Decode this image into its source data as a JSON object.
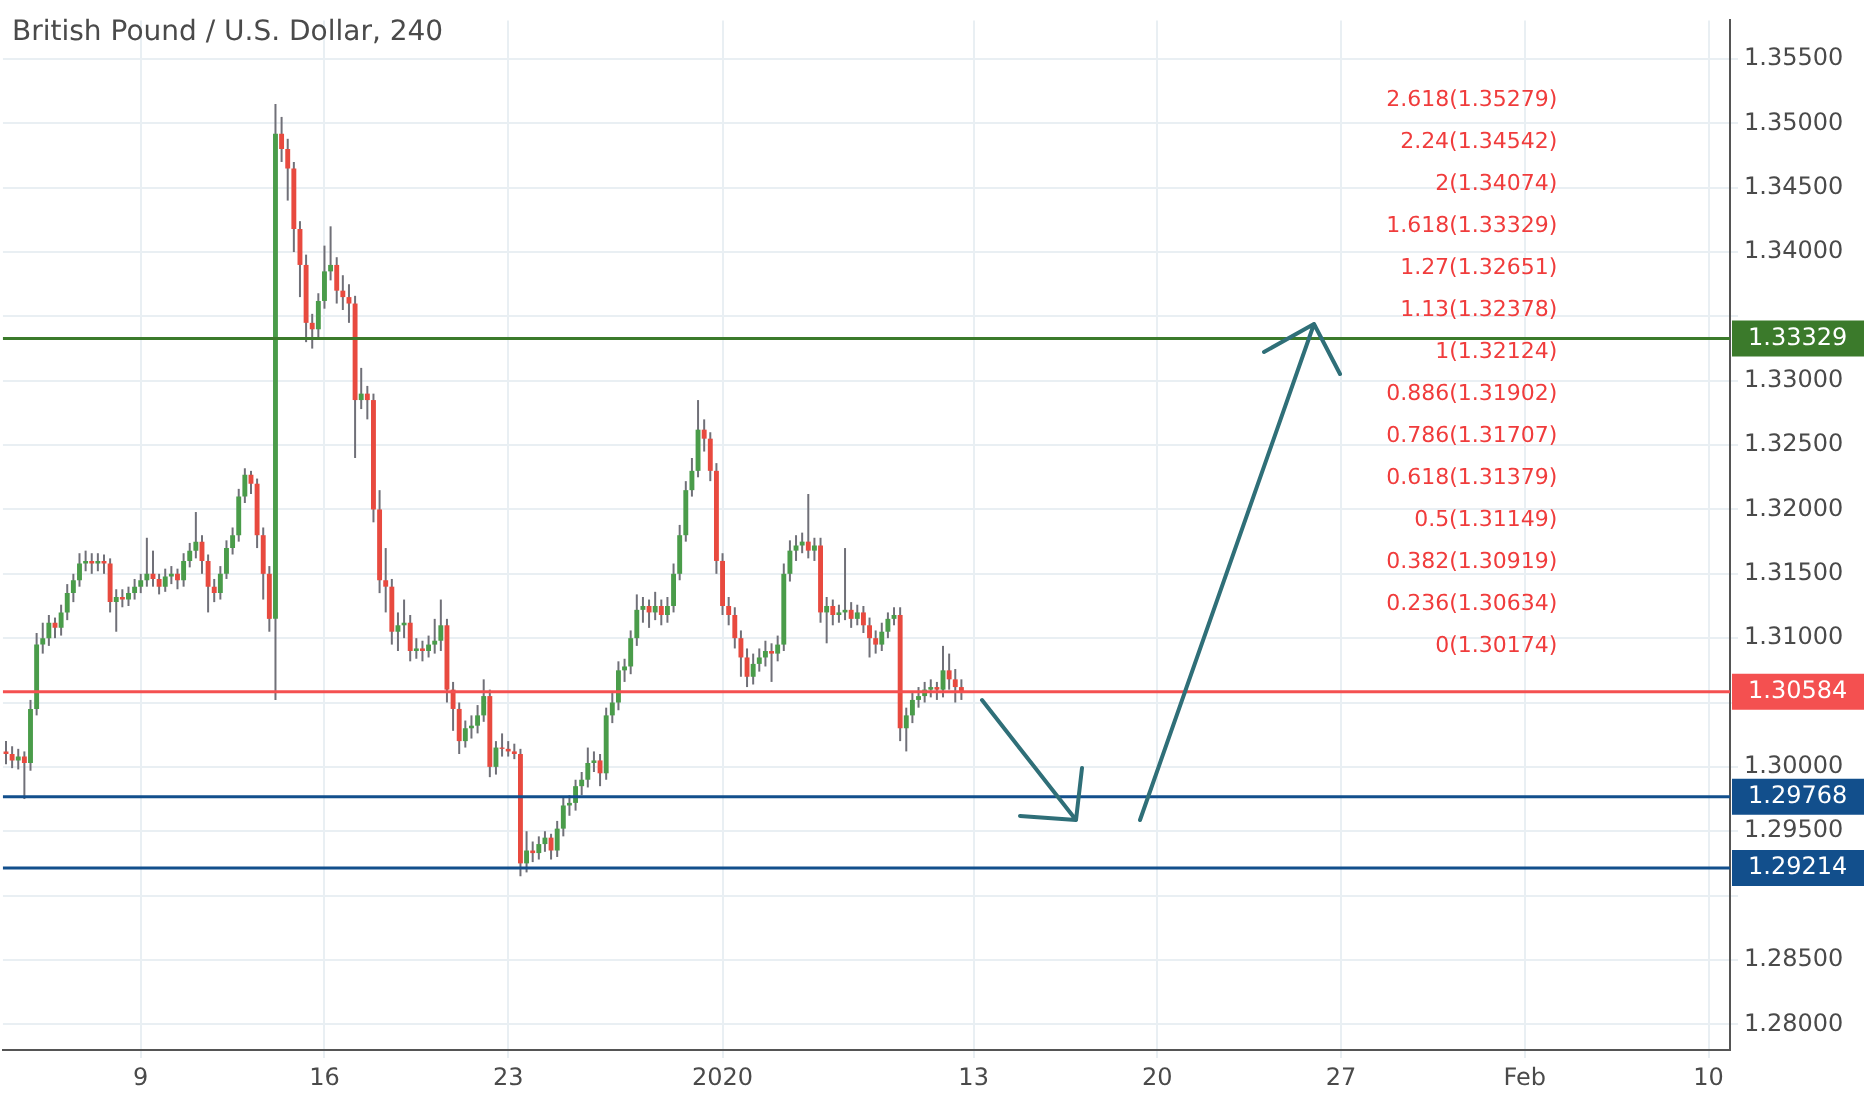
{
  "chart_data": {
    "type": "candlestick",
    "title": "British Pound / U.S. Dollar, 240",
    "categories": [
      null,
      null,
      null,
      null,
      null,
      null,
      null,
      null,
      null,
      null,
      null,
      null,
      null,
      null,
      null,
      null,
      null,
      null,
      null,
      null,
      null,
      null,
      "9",
      null,
      null,
      null,
      null,
      null,
      null,
      null,
      null,
      null,
      null,
      null,
      null,
      null,
      null,
      null,
      null,
      null,
      null,
      null,
      null,
      null,
      null,
      null,
      null,
      null,
      null,
      null,
      null,
      null,
      "16",
      null,
      null,
      null,
      null,
      null,
      null,
      null,
      null,
      null,
      null,
      null,
      null,
      null,
      null,
      null,
      null,
      null,
      null,
      null,
      null,
      null,
      null,
      null,
      null,
      null,
      null,
      null,
      null,
      null,
      "23",
      null,
      null,
      null,
      null,
      null,
      null,
      null,
      null,
      null,
      null,
      null,
      null,
      null,
      null,
      null,
      null,
      null,
      null,
      null,
      null,
      null,
      null,
      null,
      null,
      null,
      null,
      null,
      null,
      null,
      null,
      null,
      null,
      null,
      null,
      "2020",
      null,
      null,
      null,
      null,
      null,
      null,
      null,
      null,
      null,
      null,
      null,
      null,
      null,
      null,
      null,
      null,
      null,
      null,
      null,
      null,
      null,
      null,
      null,
      null,
      null,
      null,
      null,
      null,
      null,
      null,
      null,
      null,
      null,
      null,
      null,
      null,
      null,
      null,
      null,
      null,
      "13",
      null,
      null,
      null,
      null,
      null,
      null,
      null,
      null,
      null,
      null,
      null,
      null,
      null,
      null,
      null,
      null,
      null,
      null,
      null,
      null,
      null,
      null,
      null,
      null,
      null,
      null,
      null,
      null,
      null,
      "20",
      null,
      null,
      null,
      null,
      null,
      null,
      null,
      null,
      null,
      null,
      null,
      null,
      null,
      null,
      null,
      null,
      null,
      null,
      null,
      null,
      null,
      null,
      null,
      null,
      null,
      null,
      null,
      null,
      null,
      "27",
      null,
      null,
      null,
      null,
      null,
      null,
      null,
      null,
      null,
      null,
      null,
      null,
      null,
      null,
      null,
      null,
      null,
      null,
      null,
      null,
      null,
      null,
      null,
      null,
      null,
      null,
      null,
      null,
      null,
      "Feb",
      null,
      null,
      null,
      null,
      null,
      null,
      null,
      null,
      null,
      null,
      null,
      null,
      null,
      null,
      null,
      null,
      null,
      null,
      null,
      null,
      null,
      null,
      null,
      null,
      null,
      null,
      null,
      null,
      null,
      "10",
      null,
      null,
      null
    ],
    "ohlc": [
      [
        1.3012,
        1.302,
        1.3002,
        1.301
      ],
      [
        1.301,
        1.3016,
        1.2999,
        1.3005
      ],
      [
        1.3005,
        1.3014,
        1.2998,
        1.3008
      ],
      [
        1.3008,
        1.3012,
        1.2975,
        1.3003
      ],
      [
        1.3003,
        1.3052,
        1.2997,
        1.3045
      ],
      [
        1.3045,
        1.3104,
        1.304,
        1.3095
      ],
      [
        1.3095,
        1.3112,
        1.3088,
        1.31
      ],
      [
        1.31,
        1.3118,
        1.3094,
        1.3112
      ],
      [
        1.3112,
        1.3116,
        1.31,
        1.3108
      ],
      [
        1.3108,
        1.3126,
        1.3102,
        1.312
      ],
      [
        1.312,
        1.3142,
        1.3114,
        1.3135
      ],
      [
        1.3135,
        1.315,
        1.3128,
        1.3145
      ],
      [
        1.3145,
        1.3166,
        1.314,
        1.3158
      ],
      [
        1.3158,
        1.3168,
        1.3152,
        1.316
      ],
      [
        1.316,
        1.3166,
        1.315,
        1.3158
      ],
      [
        1.3158,
        1.3166,
        1.3152,
        1.316
      ],
      [
        1.316,
        1.3165,
        1.315,
        1.3158
      ],
      [
        1.3158,
        1.3162,
        1.312,
        1.3128
      ],
      [
        1.3128,
        1.3138,
        1.3105,
        1.3132
      ],
      [
        1.3132,
        1.3138,
        1.3124,
        1.313
      ],
      [
        1.313,
        1.314,
        1.3125,
        1.3135
      ],
      [
        1.3135,
        1.3146,
        1.313,
        1.314
      ],
      [
        1.314,
        1.315,
        1.3135,
        1.3145
      ],
      [
        1.3145,
        1.3178,
        1.314,
        1.315
      ],
      [
        1.315,
        1.3168,
        1.314,
        1.3146
      ],
      [
        1.3146,
        1.315,
        1.3134,
        1.314
      ],
      [
        1.314,
        1.3154,
        1.3136,
        1.3148
      ],
      [
        1.3148,
        1.3156,
        1.3142,
        1.315
      ],
      [
        1.315,
        1.3154,
        1.3138,
        1.3145
      ],
      [
        1.3145,
        1.3166,
        1.314,
        1.316
      ],
      [
        1.316,
        1.3174,
        1.3155,
        1.3168
      ],
      [
        1.3168,
        1.3198,
        1.3162,
        1.3175
      ],
      [
        1.3175,
        1.318,
        1.315,
        1.316
      ],
      [
        1.316,
        1.3165,
        1.312,
        1.314
      ],
      [
        1.314,
        1.3146,
        1.3128,
        1.3135
      ],
      [
        1.3135,
        1.3156,
        1.313,
        1.315
      ],
      [
        1.315,
        1.3176,
        1.3146,
        1.317
      ],
      [
        1.317,
        1.3186,
        1.3165,
        1.318
      ],
      [
        1.318,
        1.3216,
        1.3175,
        1.321
      ],
      [
        1.321,
        1.3232,
        1.3205,
        1.3227
      ],
      [
        1.3227,
        1.323,
        1.3212,
        1.322
      ],
      [
        1.322,
        1.3224,
        1.317,
        1.318
      ],
      [
        1.318,
        1.3186,
        1.313,
        1.315
      ],
      [
        1.315,
        1.3156,
        1.3105,
        1.3115
      ],
      [
        1.3115,
        1.3515,
        1.3052,
        1.3492
      ],
      [
        1.3492,
        1.3505,
        1.347,
        1.348
      ],
      [
        1.348,
        1.3488,
        1.344,
        1.3465
      ],
      [
        1.3465,
        1.347,
        1.34,
        1.3418
      ],
      [
        1.3418,
        1.3424,
        1.3365,
        1.339
      ],
      [
        1.339,
        1.3398,
        1.333,
        1.3345
      ],
      [
        1.3345,
        1.3352,
        1.3325,
        1.334
      ],
      [
        1.334,
        1.3368,
        1.3334,
        1.3362
      ],
      [
        1.3362,
        1.3405,
        1.3356,
        1.3385
      ],
      [
        1.3385,
        1.342,
        1.3378,
        1.339
      ],
      [
        1.339,
        1.3396,
        1.336,
        1.337
      ],
      [
        1.337,
        1.3382,
        1.3355,
        1.3365
      ],
      [
        1.3365,
        1.3375,
        1.3345,
        1.336
      ],
      [
        1.336,
        1.3366,
        1.324,
        1.3285
      ],
      [
        1.3285,
        1.331,
        1.3278,
        1.329
      ],
      [
        1.329,
        1.3296,
        1.327,
        1.3285
      ],
      [
        1.3285,
        1.329,
        1.319,
        1.32
      ],
      [
        1.32,
        1.3215,
        1.3135,
        1.3145
      ],
      [
        1.3145,
        1.317,
        1.312,
        1.314
      ],
      [
        1.314,
        1.3146,
        1.3095,
        1.3105
      ],
      [
        1.3105,
        1.312,
        1.309,
        1.311
      ],
      [
        1.311,
        1.313,
        1.31,
        1.3112
      ],
      [
        1.3112,
        1.3118,
        1.3082,
        1.309
      ],
      [
        1.309,
        1.31,
        1.3084,
        1.3092
      ],
      [
        1.3092,
        1.3098,
        1.3082,
        1.309
      ],
      [
        1.309,
        1.3102,
        1.3085,
        1.3095
      ],
      [
        1.3095,
        1.3115,
        1.3088,
        1.3098
      ],
      [
        1.3098,
        1.313,
        1.309,
        1.311
      ],
      [
        1.311,
        1.3115,
        1.305,
        1.306
      ],
      [
        1.306,
        1.3066,
        1.3028,
        1.3045
      ],
      [
        1.3045,
        1.305,
        1.301,
        1.302
      ],
      [
        1.302,
        1.3036,
        1.3015,
        1.303
      ],
      [
        1.303,
        1.304,
        1.3022,
        1.3032
      ],
      [
        1.3032,
        1.3048,
        1.3026,
        1.304
      ],
      [
        1.304,
        1.3068,
        1.3035,
        1.3055
      ],
      [
        1.3055,
        1.306,
        1.2992,
        1.3
      ],
      [
        1.3,
        1.302,
        1.2994,
        1.3015
      ],
      [
        1.3015,
        1.3026,
        1.3008,
        1.3014
      ],
      [
        1.3014,
        1.302,
        1.3008,
        1.3012
      ],
      [
        1.3012,
        1.3018,
        1.3006,
        1.301
      ],
      [
        1.301,
        1.3014,
        1.2915,
        1.2925
      ],
      [
        1.2925,
        1.295,
        1.2918,
        1.2935
      ],
      [
        1.2935,
        1.2942,
        1.2926,
        1.2933
      ],
      [
        1.2933,
        1.2946,
        1.2928,
        1.294
      ],
      [
        1.294,
        1.295,
        1.2934,
        1.2945
      ],
      [
        1.2945,
        1.2948,
        1.2928,
        1.2935
      ],
      [
        1.2935,
        1.2958,
        1.293,
        1.2952
      ],
      [
        1.2952,
        1.2976,
        1.2946,
        1.297
      ],
      [
        1.297,
        1.2978,
        1.2962,
        1.2972
      ],
      [
        1.2972,
        1.299,
        1.2966,
        1.2985
      ],
      [
        1.2985,
        1.2996,
        1.2978,
        1.299
      ],
      [
        1.299,
        1.3015,
        1.2984,
        1.3003
      ],
      [
        1.3003,
        1.3012,
        1.2996,
        1.3005
      ],
      [
        1.3005,
        1.301,
        1.2985,
        1.2995
      ],
      [
        1.2995,
        1.3046,
        1.299,
        1.304
      ],
      [
        1.304,
        1.3058,
        1.3034,
        1.305
      ],
      [
        1.305,
        1.3082,
        1.3044,
        1.3075
      ],
      [
        1.3075,
        1.3084,
        1.3066,
        1.3078
      ],
      [
        1.3078,
        1.3106,
        1.3072,
        1.31
      ],
      [
        1.31,
        1.3134,
        1.3094,
        1.3122
      ],
      [
        1.3122,
        1.3132,
        1.3112,
        1.3125
      ],
      [
        1.3125,
        1.313,
        1.3108,
        1.312
      ],
      [
        1.312,
        1.3136,
        1.3114,
        1.3125
      ],
      [
        1.3125,
        1.313,
        1.311,
        1.3118
      ],
      [
        1.3118,
        1.3132,
        1.3112,
        1.3125
      ],
      [
        1.3125,
        1.3158,
        1.312,
        1.315
      ],
      [
        1.315,
        1.3188,
        1.3145,
        1.318
      ],
      [
        1.318,
        1.3222,
        1.3175,
        1.3215
      ],
      [
        1.3215,
        1.324,
        1.321,
        1.323
      ],
      [
        1.323,
        1.3285,
        1.3225,
        1.3262
      ],
      [
        1.3262,
        1.327,
        1.3245,
        1.3255
      ],
      [
        1.3255,
        1.326,
        1.3222,
        1.323
      ],
      [
        1.323,
        1.3236,
        1.315,
        1.316
      ],
      [
        1.316,
        1.3166,
        1.3118,
        1.3125
      ],
      [
        1.3125,
        1.3132,
        1.311,
        1.3118
      ],
      [
        1.3118,
        1.3124,
        1.3092,
        1.31
      ],
      [
        1.31,
        1.3106,
        1.307,
        1.3085
      ],
      [
        1.3085,
        1.3092,
        1.3062,
        1.307
      ],
      [
        1.307,
        1.3088,
        1.3064,
        1.308
      ],
      [
        1.308,
        1.3092,
        1.3074,
        1.3085
      ],
      [
        1.3085,
        1.3098,
        1.3078,
        1.309
      ],
      [
        1.309,
        1.3096,
        1.3066,
        1.3088
      ],
      [
        1.3088,
        1.3102,
        1.3082,
        1.3095
      ],
      [
        1.3095,
        1.3158,
        1.309,
        1.315
      ],
      [
        1.315,
        1.3176,
        1.3144,
        1.3168
      ],
      [
        1.3168,
        1.318,
        1.316,
        1.3172
      ],
      [
        1.3172,
        1.3182,
        1.3166,
        1.3175
      ],
      [
        1.3175,
        1.3212,
        1.3162,
        1.3168
      ],
      [
        1.3168,
        1.3178,
        1.316,
        1.3172
      ],
      [
        1.3172,
        1.3178,
        1.3112,
        1.312
      ],
      [
        1.312,
        1.3132,
        1.3096,
        1.3125
      ],
      [
        1.3125,
        1.313,
        1.311,
        1.3118
      ],
      [
        1.3118,
        1.3126,
        1.3112,
        1.312
      ],
      [
        1.312,
        1.317,
        1.3114,
        1.3122
      ],
      [
        1.3122,
        1.3128,
        1.3108,
        1.3115
      ],
      [
        1.3115,
        1.3126,
        1.311,
        1.312
      ],
      [
        1.312,
        1.3125,
        1.3104,
        1.311
      ],
      [
        1.311,
        1.3116,
        1.3085,
        1.31
      ],
      [
        1.31,
        1.3106,
        1.3088,
        1.3095
      ],
      [
        1.3095,
        1.3112,
        1.309,
        1.3105
      ],
      [
        1.3105,
        1.312,
        1.31,
        1.3115
      ],
      [
        1.3115,
        1.3124,
        1.311,
        1.3118
      ],
      [
        1.3118,
        1.3124,
        1.302,
        1.303
      ],
      [
        1.303,
        1.3046,
        1.3012,
        1.304
      ],
      [
        1.304,
        1.3058,
        1.3034,
        1.3052
      ],
      [
        1.3052,
        1.3062,
        1.3046,
        1.3055
      ],
      [
        1.3055,
        1.3066,
        1.305,
        1.306
      ],
      [
        1.306,
        1.3068,
        1.3054,
        1.3062
      ],
      [
        1.3062,
        1.3066,
        1.3052,
        1.306
      ],
      [
        1.306,
        1.3094,
        1.3054,
        1.3075
      ],
      [
        1.3075,
        1.3088,
        1.306,
        1.3068
      ],
      [
        1.3068,
        1.3076,
        1.305,
        1.3062
      ],
      [
        1.3062,
        1.3068,
        1.3052,
        1.3058
      ],
      null,
      null,
      null,
      null,
      null,
      null,
      null,
      null,
      null,
      null,
      null,
      null,
      null,
      null,
      null,
      null,
      null,
      null,
      null,
      null,
      null,
      null,
      null,
      null,
      null,
      null,
      null,
      null,
      null,
      null,
      null,
      null,
      null,
      null,
      null,
      null,
      null,
      null,
      null,
      null,
      null,
      null,
      null,
      null,
      null,
      null,
      null,
      null,
      null,
      null,
      null,
      null,
      null,
      null,
      null,
      null,
      null,
      null,
      null,
      null,
      null,
      null,
      null,
      null,
      null,
      null,
      null,
      null,
      null,
      null,
      null,
      null,
      null,
      null,
      null,
      null,
      null,
      null,
      null,
      null,
      null,
      null,
      null,
      null,
      null,
      null,
      null,
      null,
      null,
      null,
      null,
      null,
      null,
      null,
      null,
      null,
      null,
      null,
      null,
      null,
      null,
      null,
      null,
      null,
      null,
      null,
      null,
      null,
      null,
      null,
      null,
      null,
      null,
      null,
      null,
      null,
      null,
      null,
      null,
      null,
      null,
      null,
      null,
      null,
      null
    ],
    "ylim": [
      1.278,
      1.358
    ],
    "yticks": [
      {
        "value": 1.28,
        "label": "1.28000"
      },
      {
        "value": 1.285,
        "label": "1.28500"
      },
      {
        "value": 1.29,
        "label": null
      },
      {
        "value": 1.295,
        "label": "1.29500"
      },
      {
        "value": 1.3,
        "label": "1.30000"
      },
      {
        "value": 1.305,
        "label": null
      },
      {
        "value": 1.31,
        "label": "1.31000"
      },
      {
        "value": 1.315,
        "label": "1.31500"
      },
      {
        "value": 1.32,
        "label": "1.32000"
      },
      {
        "value": 1.325,
        "label": "1.32500"
      },
      {
        "value": 1.33,
        "label": "1.33000"
      },
      {
        "value": 1.335,
        "label": null
      },
      {
        "value": 1.34,
        "label": "1.34000"
      },
      {
        "value": 1.345,
        "label": "1.34500"
      },
      {
        "value": 1.35,
        "label": "1.35000"
      },
      {
        "value": 1.355,
        "label": "1.35500"
      }
    ],
    "grid": true,
    "ref_lines": [
      {
        "axis": "y",
        "value": 1.33329,
        "label": "1.33329",
        "color": "#3b7a2b"
      },
      {
        "axis": "y",
        "value": 1.30584,
        "label": "1.30584",
        "color": "#f45050"
      },
      {
        "axis": "y",
        "value": 1.29768,
        "label": "1.29768",
        "color": "#124f8c"
      },
      {
        "axis": "y",
        "value": 1.29214,
        "label": "1.29214",
        "color": "#124f8c"
      }
    ],
    "annotations": [
      "2.618(1.35279)",
      "2.24(1.34542)",
      "2(1.34074)",
      "1.618(1.33329)",
      "1.27(1.32651)",
      "1.13(1.32378)",
      "1(1.32124)",
      "0.886(1.31902)",
      "0.786(1.31707)",
      "0.618(1.31379)",
      "0.5(1.31149)",
      "0.382(1.30919)",
      "0.236(1.30634)",
      "0(1.30174)"
    ]
  }
}
